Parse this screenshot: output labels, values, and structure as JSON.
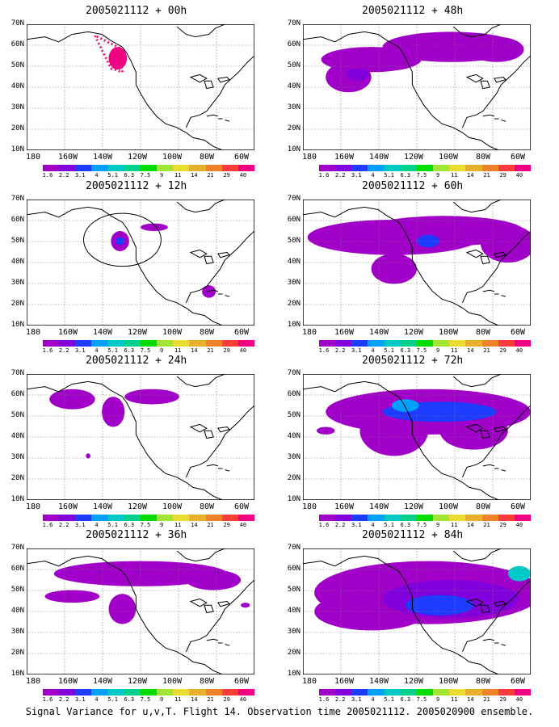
{
  "panels": [
    {
      "title": "2005021112 + 00h"
    },
    {
      "title": "2005021112 + 48h"
    },
    {
      "title": "2005021112 + 12h"
    },
    {
      "title": "2005021112 + 60h"
    },
    {
      "title": "2005021112 + 24h"
    },
    {
      "title": "2005021112 + 72h"
    },
    {
      "title": "2005021112 + 36h"
    },
    {
      "title": "2005021112 + 84h"
    }
  ],
  "axes": {
    "lat_labels": [
      "70N",
      "60N",
      "50N",
      "40N",
      "30N",
      "20N",
      "10N"
    ],
    "lon_labels": [
      "180",
      "160W",
      "140W",
      "120W",
      "100W",
      "80W",
      "60W"
    ]
  },
  "colorbar": {
    "labels": [
      "1.6",
      "2.2",
      "3.1",
      "4",
      "5.1",
      "6.3",
      "7.5",
      "9",
      "11",
      "14",
      "21",
      "29",
      "40"
    ],
    "colors": [
      "#a000c8",
      "#8200dc",
      "#1e3cff",
      "#00a0ff",
      "#00c8c8",
      "#00d28c",
      "#00dc00",
      "#a0e632",
      "#e6dc32",
      "#e6af2d",
      "#f08228",
      "#fa3c3c",
      "#f00082"
    ]
  },
  "footer": "Signal Variance for u,v,T. Flight 14. Observation time 2005021112. 2005020900 ensemble."
}
